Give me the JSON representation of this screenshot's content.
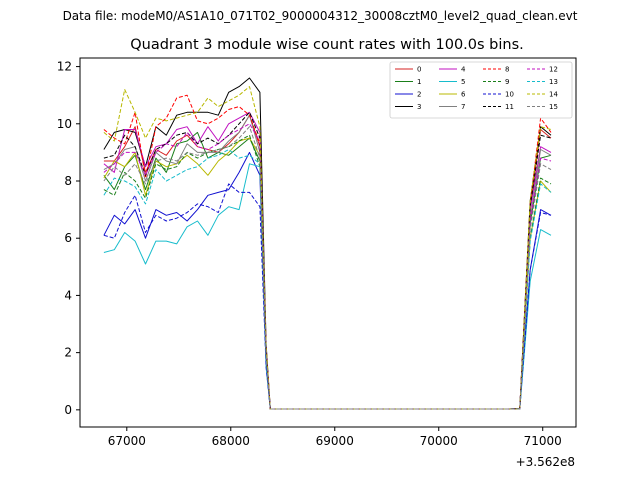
{
  "page": {
    "suptitle": "Data file: modeM0/AS1A10_071T02_9000004312_30008cztM0_level2_quad_clean.evt"
  },
  "chart_data": {
    "type": "line",
    "title": "Quadrant 3 module wise count rates with 100.0s bins.",
    "xlabel": "",
    "ylabel": "",
    "x_offset_label": "+3.562e8",
    "xlim": [
      66550,
      71320
    ],
    "ylim": [
      -0.6,
      12.3
    ],
    "xticks": [
      67000,
      68000,
      69000,
      70000,
      71000
    ],
    "xtick_labels": [
      "67000",
      "68000",
      "69000",
      "70000",
      "71000"
    ],
    "yticks": [
      0,
      2,
      4,
      6,
      8,
      10,
      12
    ],
    "ytick_labels": [
      "0",
      "2",
      "4",
      "6",
      "8",
      "10",
      "12"
    ],
    "grid": false,
    "legend_position": "top-right",
    "x": [
      66780,
      66880,
      66980,
      67080,
      67180,
      67280,
      67380,
      67480,
      67580,
      67680,
      67780,
      67880,
      67980,
      68080,
      68180,
      68280,
      68340,
      68380,
      68480,
      68580,
      68680,
      68780,
      68880,
      68980,
      69080,
      69180,
      69280,
      69380,
      69480,
      69580,
      69680,
      69780,
      69880,
      69980,
      70080,
      70180,
      70280,
      70380,
      70480,
      70580,
      70680,
      70780,
      70880,
      70980,
      71080
    ],
    "series": [
      {
        "name": "0",
        "color": "#d62020",
        "dash": "solid",
        "values": [
          8.7,
          8.7,
          9.2,
          9.9,
          8.3,
          9.1,
          8.9,
          9.4,
          9.6,
          9.2,
          9.1,
          9.0,
          9.3,
          9.7,
          10.3,
          9.2,
          2.0,
          0.03,
          0.03,
          0.03,
          0.03,
          0.03,
          0.03,
          0.03,
          0.03,
          0.03,
          0.03,
          0.03,
          0.03,
          0.03,
          0.03,
          0.03,
          0.03,
          0.03,
          0.03,
          0.03,
          0.03,
          0.03,
          0.03,
          0.03,
          0.03,
          0.04,
          7.0,
          9.8,
          9.5
        ]
      },
      {
        "name": "1",
        "color": "#1a7f1a",
        "dash": "solid",
        "values": [
          8.2,
          7.7,
          8.5,
          8.9,
          7.7,
          8.8,
          8.3,
          9.3,
          9.4,
          9.7,
          8.8,
          9.0,
          8.9,
          9.2,
          9.5,
          8.7,
          1.9,
          0.03,
          0.03,
          0.03,
          0.03,
          0.03,
          0.03,
          0.03,
          0.03,
          0.03,
          0.03,
          0.03,
          0.03,
          0.03,
          0.03,
          0.03,
          0.03,
          0.03,
          0.03,
          0.03,
          0.03,
          0.03,
          0.03,
          0.03,
          0.03,
          0.04,
          6.5,
          8.8,
          8.9
        ]
      },
      {
        "name": "2",
        "color": "#1010d0",
        "dash": "solid",
        "values": [
          6.1,
          6.8,
          6.5,
          7.0,
          6.0,
          7.0,
          6.8,
          6.9,
          6.6,
          7.0,
          7.5,
          7.6,
          7.7,
          8.3,
          9.0,
          8.2,
          1.6,
          0.03,
          0.03,
          0.03,
          0.03,
          0.03,
          0.03,
          0.03,
          0.03,
          0.03,
          0.03,
          0.03,
          0.03,
          0.03,
          0.03,
          0.03,
          0.03,
          0.03,
          0.03,
          0.03,
          0.03,
          0.03,
          0.03,
          0.03,
          0.03,
          0.04,
          4.9,
          7.0,
          6.8
        ]
      },
      {
        "name": "3",
        "color": "#000000",
        "dash": "solid",
        "values": [
          9.1,
          9.7,
          9.8,
          9.7,
          8.5,
          9.9,
          9.6,
          10.3,
          10.4,
          10.4,
          10.4,
          10.3,
          11.1,
          11.3,
          11.6,
          11.1,
          2.3,
          0.03,
          0.03,
          0.03,
          0.03,
          0.03,
          0.03,
          0.03,
          0.03,
          0.03,
          0.03,
          0.03,
          0.03,
          0.03,
          0.03,
          0.03,
          0.03,
          0.03,
          0.03,
          0.03,
          0.03,
          0.03,
          0.03,
          0.03,
          0.03,
          0.04,
          7.3,
          9.9,
          9.6
        ]
      },
      {
        "name": "4",
        "color": "#c010c0",
        "dash": "solid",
        "values": [
          8.6,
          8.3,
          9.8,
          9.8,
          8.5,
          9.2,
          9.3,
          9.8,
          9.9,
          9.3,
          9.9,
          9.4,
          10.0,
          10.2,
          10.4,
          9.7,
          2.1,
          0.03,
          0.03,
          0.03,
          0.03,
          0.03,
          0.03,
          0.03,
          0.03,
          0.03,
          0.03,
          0.03,
          0.03,
          0.03,
          0.03,
          0.03,
          0.03,
          0.03,
          0.03,
          0.03,
          0.03,
          0.03,
          0.03,
          0.03,
          0.03,
          0.04,
          7.0,
          9.2,
          9.0
        ]
      },
      {
        "name": "5",
        "color": "#17bccc",
        "dash": "solid",
        "values": [
          5.5,
          5.6,
          6.2,
          5.9,
          5.1,
          5.9,
          5.9,
          5.8,
          6.4,
          6.6,
          6.1,
          6.8,
          7.1,
          7.0,
          8.6,
          8.5,
          1.5,
          0.03,
          0.03,
          0.03,
          0.03,
          0.03,
          0.03,
          0.03,
          0.03,
          0.03,
          0.03,
          0.03,
          0.03,
          0.03,
          0.03,
          0.03,
          0.03,
          0.03,
          0.03,
          0.03,
          0.03,
          0.03,
          0.03,
          0.03,
          0.03,
          0.04,
          4.5,
          6.3,
          6.1
        ]
      },
      {
        "name": "6",
        "color": "#b8b800",
        "dash": "solid",
        "values": [
          8.1,
          8.7,
          8.5,
          9.0,
          7.5,
          8.7,
          8.5,
          8.6,
          8.9,
          8.6,
          8.2,
          8.7,
          9.0,
          9.4,
          9.5,
          8.9,
          1.9,
          0.03,
          0.03,
          0.03,
          0.03,
          0.03,
          0.03,
          0.03,
          0.03,
          0.03,
          0.03,
          0.03,
          0.03,
          0.03,
          0.03,
          0.03,
          0.03,
          0.03,
          0.03,
          0.03,
          0.03,
          0.03,
          0.03,
          0.03,
          0.03,
          0.04,
          6.0,
          8.0,
          7.6
        ]
      },
      {
        "name": "7",
        "color": "#808080",
        "dash": "solid",
        "values": [
          8.4,
          8.6,
          9.1,
          9.2,
          8.0,
          9.0,
          8.7,
          8.6,
          9.3,
          9.0,
          9.0,
          9.0,
          9.4,
          9.7,
          10.3,
          9.0,
          2.0,
          0.03,
          0.03,
          0.03,
          0.03,
          0.03,
          0.03,
          0.03,
          0.03,
          0.03,
          0.03,
          0.03,
          0.03,
          0.03,
          0.03,
          0.03,
          0.03,
          0.03,
          0.03,
          0.03,
          0.03,
          0.03,
          0.03,
          0.03,
          0.03,
          0.04,
          6.7,
          9.1,
          8.9
        ]
      },
      {
        "name": "8",
        "color": "#ff0000",
        "dash": "dashed",
        "values": [
          9.8,
          9.5,
          9.3,
          10.4,
          8.1,
          9.9,
          10.2,
          10.9,
          11.0,
          10.1,
          10.0,
          10.2,
          10.5,
          10.6,
          10.3,
          9.3,
          2.2,
          0.03,
          0.03,
          0.03,
          0.03,
          0.03,
          0.03,
          0.03,
          0.03,
          0.03,
          0.03,
          0.03,
          0.03,
          0.03,
          0.03,
          0.03,
          0.03,
          0.03,
          0.03,
          0.03,
          0.03,
          0.03,
          0.03,
          0.03,
          0.03,
          0.04,
          7.2,
          10.2,
          9.7
        ]
      },
      {
        "name": "9",
        "color": "#1a7f1a",
        "dash": "dashed",
        "values": [
          7.7,
          7.5,
          8.3,
          8.0,
          7.4,
          8.6,
          8.4,
          8.5,
          9.0,
          8.8,
          9.0,
          9.1,
          9.2,
          9.4,
          9.6,
          8.5,
          1.8,
          0.03,
          0.03,
          0.03,
          0.03,
          0.03,
          0.03,
          0.03,
          0.03,
          0.03,
          0.03,
          0.03,
          0.03,
          0.03,
          0.03,
          0.03,
          0.03,
          0.03,
          0.03,
          0.03,
          0.03,
          0.03,
          0.03,
          0.03,
          0.03,
          0.04,
          6.0,
          8.1,
          7.9
        ]
      },
      {
        "name": "10",
        "color": "#1010d0",
        "dash": "dashed",
        "values": [
          6.1,
          6.0,
          6.9,
          7.5,
          6.2,
          6.8,
          6.6,
          6.7,
          6.9,
          7.2,
          7.1,
          6.9,
          7.9,
          7.6,
          7.6,
          7.1,
          1.5,
          0.03,
          0.03,
          0.03,
          0.03,
          0.03,
          0.03,
          0.03,
          0.03,
          0.03,
          0.03,
          0.03,
          0.03,
          0.03,
          0.03,
          0.03,
          0.03,
          0.03,
          0.03,
          0.03,
          0.03,
          0.03,
          0.03,
          0.03,
          0.03,
          0.04,
          4.9,
          6.9,
          6.8
        ]
      },
      {
        "name": "11",
        "color": "#000000",
        "dash": "dashed",
        "values": [
          8.8,
          8.9,
          9.6,
          9.2,
          8.2,
          9.1,
          9.3,
          9.6,
          9.7,
          9.3,
          9.5,
          9.3,
          9.6,
          10.0,
          10.4,
          9.5,
          2.1,
          0.03,
          0.03,
          0.03,
          0.03,
          0.03,
          0.03,
          0.03,
          0.03,
          0.03,
          0.03,
          0.03,
          0.03,
          0.03,
          0.03,
          0.03,
          0.03,
          0.03,
          0.03,
          0.03,
          0.03,
          0.03,
          0.03,
          0.03,
          0.03,
          0.04,
          7.1,
          9.6,
          9.5
        ]
      },
      {
        "name": "12",
        "color": "#c010c0",
        "dash": "dashed",
        "values": [
          8.3,
          8.6,
          9.0,
          9.0,
          8.2,
          9.0,
          9.3,
          9.2,
          9.7,
          9.2,
          9.1,
          9.3,
          9.6,
          9.8,
          10.0,
          9.4,
          2.0,
          0.03,
          0.03,
          0.03,
          0.03,
          0.03,
          0.03,
          0.03,
          0.03,
          0.03,
          0.03,
          0.03,
          0.03,
          0.03,
          0.03,
          0.03,
          0.03,
          0.03,
          0.03,
          0.03,
          0.03,
          0.03,
          0.03,
          0.03,
          0.03,
          0.04,
          6.6,
          8.8,
          8.7
        ]
      },
      {
        "name": "13",
        "color": "#17bccc",
        "dash": "dashed",
        "values": [
          7.5,
          8.1,
          8.0,
          7.8,
          7.2,
          8.4,
          8.0,
          8.2,
          8.4,
          8.5,
          8.8,
          8.9,
          9.1,
          8.8,
          8.9,
          8.6,
          1.8,
          0.03,
          0.03,
          0.03,
          0.03,
          0.03,
          0.03,
          0.03,
          0.03,
          0.03,
          0.03,
          0.03,
          0.03,
          0.03,
          0.03,
          0.03,
          0.03,
          0.03,
          0.03,
          0.03,
          0.03,
          0.03,
          0.03,
          0.03,
          0.03,
          0.04,
          5.9,
          7.9,
          7.6
        ]
      },
      {
        "name": "14",
        "color": "#b8b800",
        "dash": "dashed",
        "values": [
          9.7,
          9.4,
          11.2,
          10.4,
          9.5,
          10.2,
          10.1,
          10.2,
          10.3,
          10.4,
          10.9,
          10.6,
          10.8,
          11.0,
          11.3,
          9.9,
          2.2,
          0.03,
          0.03,
          0.03,
          0.03,
          0.03,
          0.03,
          0.03,
          0.03,
          0.03,
          0.03,
          0.03,
          0.03,
          0.03,
          0.03,
          0.03,
          0.03,
          0.03,
          0.03,
          0.03,
          0.03,
          0.03,
          0.03,
          0.03,
          0.03,
          0.04,
          7.3,
          9.9,
          9.8
        ]
      },
      {
        "name": "15",
        "color": "#808080",
        "dash": "dashed",
        "values": [
          8.0,
          8.5,
          8.2,
          8.6,
          7.9,
          8.7,
          8.8,
          8.7,
          9.0,
          8.9,
          9.0,
          9.1,
          9.2,
          9.5,
          9.9,
          8.8,
          1.9,
          0.03,
          0.03,
          0.03,
          0.03,
          0.03,
          0.03,
          0.03,
          0.03,
          0.03,
          0.03,
          0.03,
          0.03,
          0.03,
          0.03,
          0.03,
          0.03,
          0.03,
          0.03,
          0.03,
          0.03,
          0.03,
          0.03,
          0.03,
          0.03,
          0.04,
          6.3,
          8.6,
          8.4
        ]
      }
    ]
  }
}
